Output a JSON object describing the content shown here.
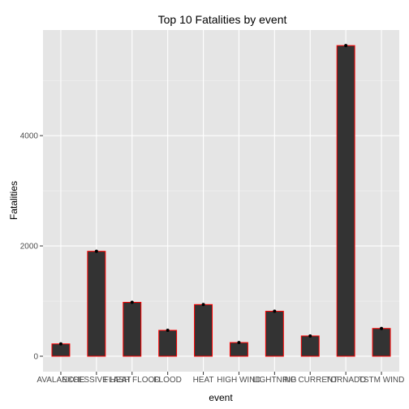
{
  "chart_data": {
    "type": "bar",
    "title": "Top 10 Fatalities by event",
    "xlabel": "event",
    "ylabel": "Fatalities",
    "categories": [
      "AVALANCHE",
      "EXCESSIVE HEAT",
      "FLASH FLOOD",
      "FLOOD",
      "HEAT",
      "HIGH WIND",
      "LIGHTNING",
      "RIP CURRENT",
      "TORNADO",
      "TSTM WIND"
    ],
    "values": [
      224,
      1903,
      978,
      470,
      937,
      248,
      816,
      368,
      5633,
      504
    ],
    "yticks": [
      0,
      2000,
      4000
    ],
    "ytick_labels": [
      "0",
      "2000",
      "4000"
    ],
    "ylim": [
      -280,
      5915
    ],
    "grid": true,
    "legend": "none",
    "colors": {
      "panel": "#e5e5e5",
      "grid_major": "#ffffff",
      "grid_minor": "#f2f2f2",
      "bar_fill": "#333333",
      "bar_outline": "#ff0000",
      "point": "#000000",
      "tick_text": "#4d4d4d"
    }
  }
}
